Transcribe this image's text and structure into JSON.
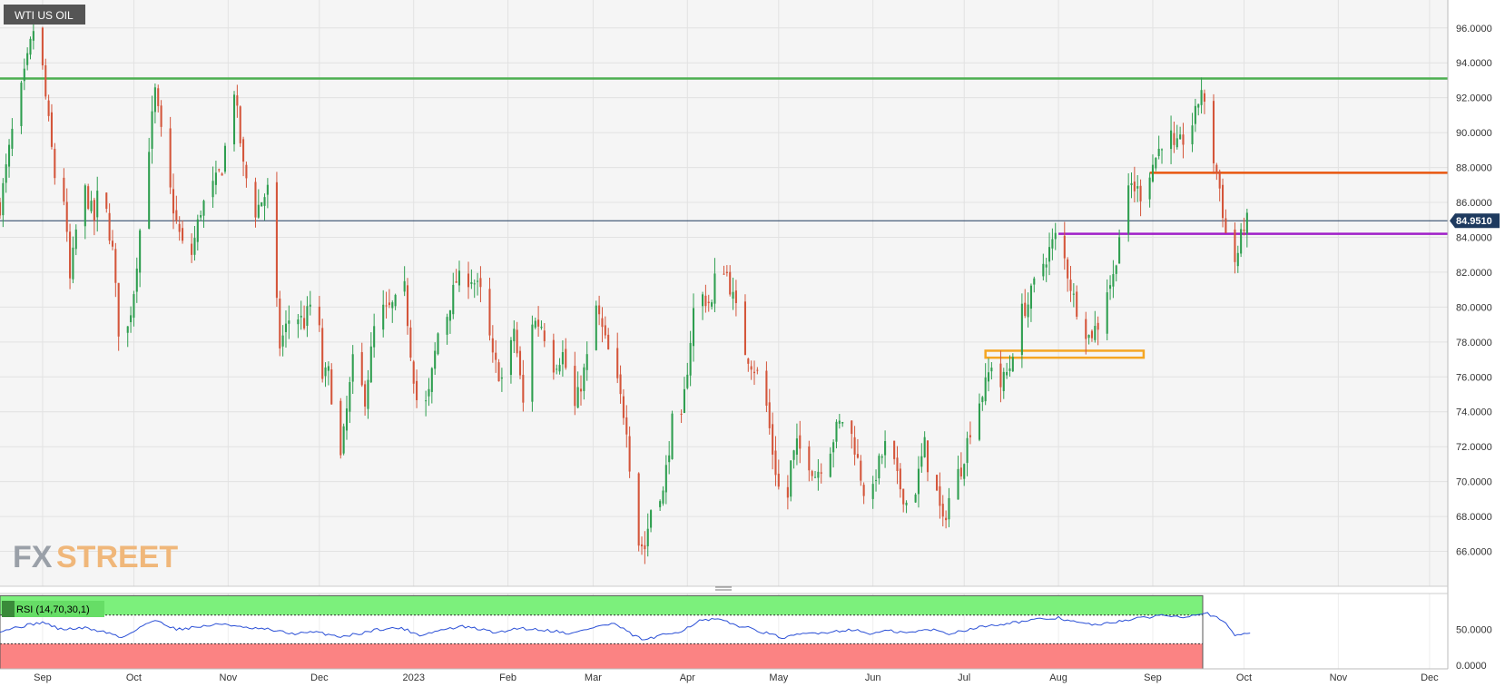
{
  "chart_data": {
    "type": "candlestick",
    "title": "WTI US OIL",
    "ylim": [
      64.0,
      97.6
    ],
    "yticks": [
      96,
      94,
      92,
      90,
      88,
      86,
      84,
      82,
      80,
      78,
      76,
      74,
      72,
      70,
      68,
      66
    ],
    "ytick_labels": [
      "96.0000",
      "94.0000",
      "92.0000",
      "90.0000",
      "88.0000",
      "86.0000",
      "84.0000",
      "82.0000",
      "80.0000",
      "78.0000",
      "76.0000",
      "74.0000",
      "72.0000",
      "70.0000",
      "68.0000",
      "66.0000"
    ],
    "x_labels": [
      {
        "label": "Sep",
        "day": 14
      },
      {
        "label": "Oct",
        "day": 44
      },
      {
        "label": "Nov",
        "day": 75
      },
      {
        "label": "Dec",
        "day": 105
      },
      {
        "label": "2023",
        "day": 136
      },
      {
        "label": "Feb",
        "day": 167
      },
      {
        "label": "Mar",
        "day": 195
      },
      {
        "label": "Apr",
        "day": 226
      },
      {
        "label": "May",
        "day": 256
      },
      {
        "label": "Jun",
        "day": 287
      },
      {
        "label": "Jul",
        "day": 317
      },
      {
        "label": "Aug",
        "day": 348
      },
      {
        "label": "Sep",
        "day": 379
      },
      {
        "label": "Oct",
        "day": 409
      },
      {
        "label": "Nov",
        "day": 440
      },
      {
        "label": "Dec",
        "day": 470
      }
    ],
    "xlim": [
      0,
      476
    ],
    "current_price": 84.951,
    "current_price_label": "84.9510",
    "anchors": [
      [
        0,
        85.8
      ],
      [
        4,
        90.0
      ],
      [
        8,
        93.2
      ],
      [
        12,
        96.8
      ],
      [
        15,
        92.0
      ],
      [
        18,
        87.5
      ],
      [
        20,
        88.6
      ],
      [
        23,
        81.5
      ],
      [
        27,
        87.2
      ],
      [
        31,
        85.0
      ],
      [
        33,
        87.5
      ],
      [
        37,
        83.2
      ],
      [
        40,
        76.5
      ],
      [
        44,
        81.0
      ],
      [
        48,
        87.8
      ],
      [
        51,
        92.3
      ],
      [
        55,
        87.5
      ],
      [
        58,
        84.8
      ],
      [
        62,
        82.2
      ],
      [
        66,
        85.6
      ],
      [
        71,
        87.2
      ],
      [
        73,
        88.0
      ],
      [
        77,
        92.5
      ],
      [
        80,
        88.0
      ],
      [
        84,
        85.5
      ],
      [
        88,
        86.7
      ],
      [
        92,
        77.8
      ],
      [
        96,
        79.8
      ],
      [
        100,
        79.1
      ],
      [
        104,
        81.1
      ],
      [
        106,
        76.0
      ],
      [
        108,
        76.2
      ],
      [
        112,
        71.3
      ],
      [
        116,
        76.8
      ],
      [
        120,
        74.8
      ],
      [
        124,
        80.0
      ],
      [
        127,
        79.7
      ],
      [
        130,
        80.2
      ],
      [
        133,
        81.0
      ],
      [
        135,
        77.5
      ],
      [
        138,
        73.3
      ],
      [
        141,
        75.0
      ],
      [
        144,
        78.5
      ],
      [
        147,
        79.6
      ],
      [
        150,
        81.5
      ],
      [
        155,
        81.7
      ],
      [
        159,
        80.5
      ],
      [
        162,
        77.0
      ],
      [
        166,
        75.5
      ],
      [
        169,
        78.8
      ],
      [
        172,
        74.4
      ],
      [
        175,
        79.2
      ],
      [
        178,
        79.0
      ],
      [
        182,
        76.7
      ],
      [
        185,
        77.3
      ],
      [
        189,
        74.2
      ],
      [
        193,
        77.0
      ],
      [
        196,
        80.0
      ],
      [
        199,
        78.0
      ],
      [
        202,
        76.3
      ],
      [
        206,
        73.2
      ],
      [
        209,
        66.7
      ],
      [
        212,
        66.2
      ],
      [
        215,
        69.6
      ],
      [
        218,
        69.3
      ],
      [
        221,
        73.4
      ],
      [
        224,
        73.3
      ],
      [
        228,
        79.8
      ],
      [
        231,
        80.6
      ],
      [
        234,
        80.1
      ],
      [
        236,
        83.0
      ],
      [
        239,
        81.9
      ],
      [
        242,
        79.8
      ],
      [
        245,
        77.5
      ],
      [
        248,
        76.5
      ],
      [
        251,
        75.6
      ],
      [
        254,
        71.7
      ],
      [
        257,
        68.6
      ],
      [
        258,
        67.2
      ],
      [
        260,
        71.0
      ],
      [
        262,
        72.0
      ],
      [
        265,
        71.5
      ],
      [
        268,
        70.4
      ],
      [
        272,
        71.5
      ],
      [
        275,
        73.0
      ],
      [
        278,
        73.8
      ],
      [
        281,
        72.0
      ],
      [
        284,
        69.5
      ],
      [
        286,
        68.2
      ],
      [
        288,
        70.5
      ],
      [
        292,
        72.5
      ],
      [
        295,
        70.1
      ],
      [
        298,
        68.8
      ],
      [
        301,
        69.6
      ],
      [
        304,
        72.1
      ],
      [
        306,
        69.9
      ],
      [
        308,
        69.3
      ],
      [
        310,
        67.5
      ],
      [
        313,
        69.8
      ],
      [
        316,
        70.8
      ],
      [
        320,
        73.8
      ],
      [
        324,
        75.5
      ],
      [
        326,
        76.8
      ],
      [
        329,
        75.5
      ],
      [
        332,
        76.6
      ],
      [
        335,
        79.5
      ],
      [
        338,
        80.2
      ],
      [
        341,
        81.8
      ],
      [
        344,
        82.9
      ],
      [
        347,
        84.0
      ],
      [
        350,
        82.7
      ],
      [
        353,
        80.5
      ],
      [
        355,
        79.5
      ],
      [
        358,
        78.3
      ],
      [
        361,
        79.0
      ],
      [
        363,
        80.8
      ],
      [
        366,
        81.7
      ],
      [
        369,
        85.4
      ],
      [
        372,
        87.0
      ],
      [
        375,
        86.5
      ],
      [
        378,
        87.8
      ],
      [
        381,
        89.0
      ],
      [
        384,
        90.6
      ],
      [
        386,
        88.9
      ],
      [
        389,
        89.6
      ],
      [
        391,
        90.1
      ],
      [
        393,
        91.0
      ],
      [
        395,
        92.6
      ],
      [
        397,
        90.1
      ],
      [
        399,
        88.5
      ],
      [
        401,
        86.8
      ],
      [
        403,
        84.2
      ],
      [
        405,
        82.2
      ],
      [
        407,
        83.1
      ],
      [
        409,
        84.8
      ],
      [
        411,
        84.95
      ]
    ],
    "levels": [
      {
        "name": "resistance-green",
        "y": 93.1,
        "x_start": 0,
        "x_end": 476,
        "color": "#4caf50",
        "width": 2.5
      },
      {
        "name": "resistance-orange",
        "y": 87.7,
        "x_start": 378,
        "x_end": 476,
        "color": "#e8560f",
        "width": 2.5
      },
      {
        "name": "support-purple",
        "y": 84.2,
        "x_start": 348,
        "x_end": 476,
        "color": "#a020c8",
        "width": 2.5
      }
    ],
    "zone": {
      "x_start": 324,
      "x_end": 376,
      "y_low": 77.1,
      "y_high": 77.5,
      "color": "#f5a623"
    },
    "rsi": {
      "label": "RSI (14,70,30,1)",
      "ylim": [
        -5,
        100
      ],
      "overbought": 70,
      "oversold": 30,
      "ytick_labels": [
        {
          "label": "50.0000",
          "v": 50
        },
        {
          "label": "0.0000",
          "v": 0
        }
      ],
      "anchors": [
        [
          0,
          48
        ],
        [
          8,
          55
        ],
        [
          14,
          60
        ],
        [
          20,
          50
        ],
        [
          28,
          52
        ],
        [
          36,
          45
        ],
        [
          40,
          38
        ],
        [
          48,
          58
        ],
        [
          52,
          62
        ],
        [
          58,
          50
        ],
        [
          66,
          54
        ],
        [
          74,
          58
        ],
        [
          80,
          52
        ],
        [
          88,
          50
        ],
        [
          96,
          44
        ],
        [
          104,
          46
        ],
        [
          112,
          40
        ],
        [
          118,
          44
        ],
        [
          124,
          50
        ],
        [
          132,
          52
        ],
        [
          138,
          42
        ],
        [
          146,
          50
        ],
        [
          152,
          54
        ],
        [
          158,
          50
        ],
        [
          164,
          45
        ],
        [
          170,
          52
        ],
        [
          176,
          50
        ],
        [
          182,
          48
        ],
        [
          188,
          44
        ],
        [
          196,
          54
        ],
        [
          202,
          58
        ],
        [
          208,
          42
        ],
        [
          212,
          35
        ],
        [
          218,
          42
        ],
        [
          224,
          48
        ],
        [
          230,
          62
        ],
        [
          236,
          64
        ],
        [
          242,
          56
        ],
        [
          248,
          50
        ],
        [
          254,
          42
        ],
        [
          258,
          38
        ],
        [
          264,
          44
        ],
        [
          272,
          46
        ],
        [
          280,
          50
        ],
        [
          286,
          44
        ],
        [
          292,
          48
        ],
        [
          298,
          45
        ],
        [
          306,
          50
        ],
        [
          312,
          44
        ],
        [
          318,
          50
        ],
        [
          326,
          56
        ],
        [
          334,
          60
        ],
        [
          342,
          64
        ],
        [
          348,
          66
        ],
        [
          356,
          58
        ],
        [
          362,
          56
        ],
        [
          368,
          62
        ],
        [
          376,
          66
        ],
        [
          382,
          70
        ],
        [
          390,
          68
        ],
        [
          396,
          74
        ],
        [
          402,
          62
        ],
        [
          406,
          42
        ],
        [
          409,
          44
        ],
        [
          412,
          47
        ]
      ]
    }
  }
}
